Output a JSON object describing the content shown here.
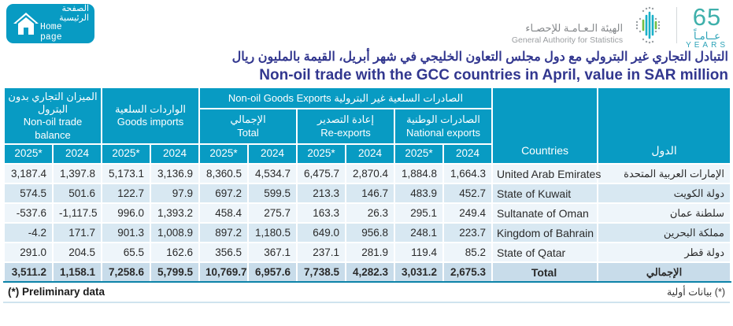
{
  "home_button": {
    "ar_line1": "الصفحة",
    "ar_line2": "الرئيسية",
    "en": "Home page"
  },
  "logo": {
    "authority_ar": "الهيئة الـعـامـة للإحصـاء",
    "authority_en": "General Authority for Statistics",
    "years_number": "65",
    "years_ar": "عــامـاً",
    "years_en": "YEARS"
  },
  "title": {
    "ar": "التبادل التجاري غير البترولي مع دول مجلس التعاون الخليجي في شهر أبريل، القيمة بالمليون ريال",
    "en": "Non-oil trade with the GCC countries in April, value in SAR million"
  },
  "table": {
    "groups": {
      "trade_balance_ar": "الميزان التجاري بدون البترول",
      "trade_balance_en": "Non-oil trade balance",
      "goods_imports_ar": "الواردات السلعية",
      "goods_imports_en": "Goods imports",
      "exports_group_ar": "الصادرات السلعية غير البترولية",
      "exports_group_en": "Non-oil Goods Exports",
      "total_ar": "الإجمالي",
      "total_en": "Total",
      "re_exports_ar": "إعادة التصدير",
      "re_exports_en": "Re-exports",
      "national_exports_ar": "الصادرات الوطنية",
      "national_exports_en": "National exports",
      "countries_en": "Countries",
      "countries_ar": "الدول"
    },
    "year_labels": [
      "2025*",
      "2024"
    ],
    "rows": [
      {
        "values": [
          "3,187.4",
          "1,397.8",
          "5,173.1",
          "3,136.9",
          "8,360.5",
          "4,534.7",
          "6,475.7",
          "2,870.4",
          "1,884.8",
          "1,664.3"
        ],
        "country_en": "United Arab Emirates",
        "country_ar": "الإمارات العربية المتحدة"
      },
      {
        "values": [
          "574.5",
          "501.6",
          "122.7",
          "97.9",
          "697.2",
          "599.5",
          "213.3",
          "146.7",
          "483.9",
          "452.7"
        ],
        "country_en": "State of Kuwait",
        "country_ar": "دولة الكويت"
      },
      {
        "values": [
          "-537.6",
          "-1,117.5",
          "996.0",
          "1,393.2",
          "458.4",
          "275.7",
          "163.3",
          "26.3",
          "295.1",
          "249.4"
        ],
        "country_en": "Sultanate of Oman",
        "country_ar": "سلطنة عمان"
      },
      {
        "values": [
          "-4.2",
          "171.7",
          "901.3",
          "1,008.9",
          "897.2",
          "1,180.5",
          "649.0",
          "956.8",
          "248.1",
          "223.7"
        ],
        "country_en": "Kingdom of Bahrain",
        "country_ar": "مملكة البحرين"
      },
      {
        "values": [
          "291.0",
          "204.5",
          "65.5",
          "162.6",
          "356.5",
          "367.1",
          "237.1",
          "281.9",
          "119.4",
          "85.2"
        ],
        "country_en": "State of Qatar",
        "country_ar": "دولة قطر"
      }
    ],
    "total_row": {
      "values": [
        "3,511.2",
        "1,158.1",
        "7,258.6",
        "5,799.5",
        "10,769.7",
        "6,957.6",
        "7,738.5",
        "4,282.3",
        "3,031.2",
        "2,675.3"
      ],
      "country_en": "Total",
      "country_ar": "الإجمالي"
    }
  },
  "footnote": {
    "en": "(*) Preliminary data",
    "ar": "(*) بيانات أولية"
  },
  "colors": {
    "header_teal": "#089bc3",
    "title_navy": "#32378f",
    "row_light": "#eef5fa",
    "row_dark": "#d8e8f2",
    "total_row_bg": "#c8dcea",
    "total_row_border": "#0d83a8",
    "logo_teal": "#2da3b8",
    "logo_green": "#72bf44"
  }
}
